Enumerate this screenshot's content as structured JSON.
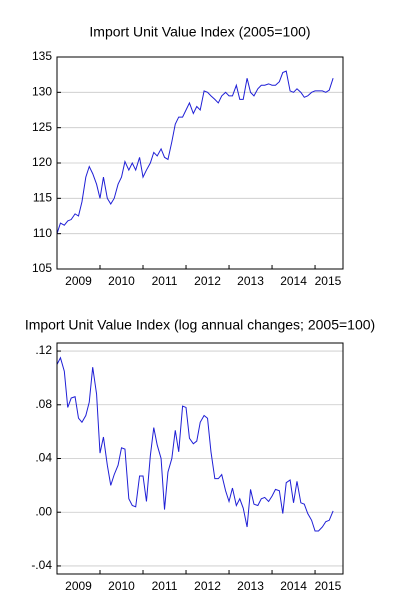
{
  "chart_data": [
    {
      "type": "line",
      "title": "Import Unit Value Index (2005=100)",
      "x": [
        2009.0,
        2009.08,
        2009.17,
        2009.25,
        2009.33,
        2009.42,
        2009.5,
        2009.58,
        2009.67,
        2009.75,
        2009.83,
        2009.92,
        2010.0,
        2010.08,
        2010.17,
        2010.25,
        2010.33,
        2010.42,
        2010.5,
        2010.58,
        2010.67,
        2010.75,
        2010.83,
        2010.92,
        2011.0,
        2011.08,
        2011.17,
        2011.25,
        2011.33,
        2011.42,
        2011.5,
        2011.58,
        2011.67,
        2011.75,
        2011.83,
        2011.92,
        2012.0,
        2012.08,
        2012.17,
        2012.25,
        2012.33,
        2012.42,
        2012.5,
        2012.58,
        2012.67,
        2012.75,
        2012.83,
        2012.92,
        2013.0,
        2013.08,
        2013.17,
        2013.25,
        2013.33,
        2013.42,
        2013.5,
        2013.58,
        2013.67,
        2013.75,
        2013.83,
        2013.92,
        2014.0,
        2014.08,
        2014.17,
        2014.25,
        2014.33,
        2014.42,
        2014.5,
        2014.58,
        2014.67,
        2014.75,
        2014.83,
        2014.92,
        2015.0,
        2015.08,
        2015.17,
        2015.25,
        2015.33,
        2015.42
      ],
      "series": [
        {
          "name": "Import Unit Value Index",
          "color": "#1f1fd6",
          "values": [
            110,
            111.5,
            111.2,
            111.8,
            112,
            112.8,
            112.5,
            114.5,
            118,
            119.5,
            118.5,
            117,
            115,
            118,
            115,
            114.2,
            115,
            117,
            118,
            120.2,
            119,
            120,
            119,
            120.8,
            118,
            119,
            120,
            121.5,
            121,
            122,
            120.8,
            120.5,
            123,
            125.5,
            126.5,
            126.5,
            127.5,
            128.5,
            127,
            128,
            127.5,
            130.2,
            130,
            129.5,
            129,
            128.5,
            129.5,
            130,
            129.5,
            129.5,
            131,
            129,
            129,
            132,
            130,
            129.5,
            130.5,
            131,
            131,
            131.2,
            131,
            131,
            131.5,
            132.8,
            133,
            130.2,
            130,
            130.5,
            130,
            129.3,
            129.5,
            130,
            130.2,
            130.2,
            130.2,
            130,
            130.3,
            132
          ]
        }
      ],
      "xlim": [
        2009,
        2015.65
      ],
      "xticks": [
        {
          "value": 2009.5,
          "label": "2009"
        },
        {
          "value": 2010.5,
          "label": "2010"
        },
        {
          "value": 2011.5,
          "label": "2011"
        },
        {
          "value": 2012.5,
          "label": "2012"
        },
        {
          "value": 2013.5,
          "label": "2013"
        },
        {
          "value": 2014.5,
          "label": "2014"
        },
        {
          "value": 2015.3,
          "label": "2015"
        }
      ],
      "ylim": [
        105,
        135
      ],
      "yticks": [
        105,
        110,
        115,
        120,
        125,
        130,
        135
      ],
      "grid": true
    },
    {
      "type": "line",
      "title": "Import Unit Value Index (log annual changes; 2005=100)",
      "x": [
        2009.0,
        2009.08,
        2009.17,
        2009.25,
        2009.33,
        2009.42,
        2009.5,
        2009.58,
        2009.67,
        2009.75,
        2009.83,
        2009.92,
        2010.0,
        2010.08,
        2010.17,
        2010.25,
        2010.33,
        2010.42,
        2010.5,
        2010.58,
        2010.67,
        2010.75,
        2010.83,
        2010.92,
        2011.0,
        2011.08,
        2011.17,
        2011.25,
        2011.33,
        2011.42,
        2011.5,
        2011.58,
        2011.67,
        2011.75,
        2011.83,
        2011.92,
        2012.0,
        2012.08,
        2012.17,
        2012.25,
        2012.33,
        2012.42,
        2012.5,
        2012.58,
        2012.67,
        2012.75,
        2012.83,
        2012.92,
        2013.0,
        2013.08,
        2013.17,
        2013.25,
        2013.33,
        2013.42,
        2013.5,
        2013.58,
        2013.67,
        2013.75,
        2013.83,
        2013.92,
        2014.0,
        2014.08,
        2014.17,
        2014.25,
        2014.33,
        2014.42,
        2014.5,
        2014.58,
        2014.67,
        2014.75,
        2014.83,
        2014.92,
        2015.0,
        2015.08,
        2015.17,
        2015.25,
        2015.33,
        2015.42
      ],
      "series": [
        {
          "name": "Log annual changes",
          "color": "#1f1fd6",
          "values": [
            0.11,
            0.115,
            0.105,
            0.078,
            0.085,
            0.086,
            0.07,
            0.067,
            0.072,
            0.082,
            0.108,
            0.088,
            0.044,
            0.056,
            0.035,
            0.02,
            0.028,
            0.035,
            0.048,
            0.047,
            0.01,
            0.005,
            0.004,
            0.027,
            0.027,
            0.008,
            0.042,
            0.063,
            0.05,
            0.04,
            0.002,
            0.03,
            0.04,
            0.061,
            0.045,
            0.079,
            0.078,
            0.055,
            0.051,
            0.053,
            0.067,
            0.072,
            0.07,
            0.045,
            0.025,
            0.025,
            0.028,
            0.016,
            0.008,
            0.018,
            0.005,
            0.01,
            0.003,
            -0.011,
            0.017,
            0.006,
            0.005,
            0.01,
            0.011,
            0.008,
            0.012,
            0.017,
            0.016,
            -0.001,
            0.022,
            0.024,
            0.007,
            0.023,
            0.007,
            0.006,
            -0.001,
            -0.006,
            -0.014,
            -0.014,
            -0.011,
            -0.007,
            -0.006,
            0.001
          ]
        }
      ],
      "xlim": [
        2009,
        2015.65
      ],
      "xticks": [
        {
          "value": 2009.5,
          "label": "2009"
        },
        {
          "value": 2010.5,
          "label": "2010"
        },
        {
          "value": 2011.5,
          "label": "2011"
        },
        {
          "value": 2012.5,
          "label": "2012"
        },
        {
          "value": 2013.5,
          "label": "2013"
        },
        {
          "value": 2014.5,
          "label": "2014"
        },
        {
          "value": 2015.3,
          "label": "2015"
        }
      ],
      "ylim": [
        -0.046,
        0.126
      ],
      "yticks": [
        {
          "value": -0.04,
          "label": "-.04"
        },
        {
          "value": 0,
          "label": ".00"
        },
        {
          "value": 0.04,
          "label": ".04"
        },
        {
          "value": 0.08,
          "label": ".08"
        },
        {
          "value": 0.12,
          "label": ".12"
        }
      ],
      "grid": true
    }
  ]
}
